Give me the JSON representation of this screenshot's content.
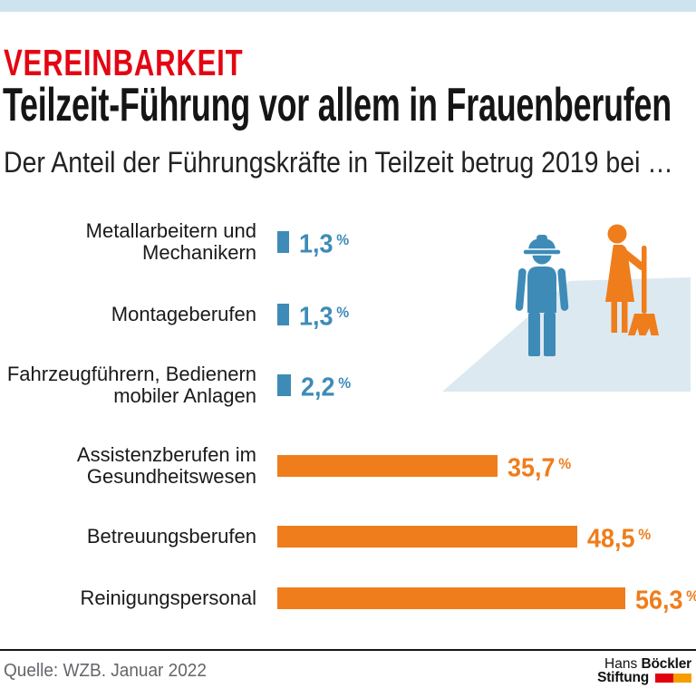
{
  "page": {
    "kicker": "VEREINBARKEIT"
  },
  "chart_data": {
    "type": "bar",
    "orientation": "horizontal",
    "title": "Teilzeit-Führung vor allem in Frauenberufen",
    "subtitle": "Der Anteil der Führungskräfte in Teilzeit betrug 2019 bei …",
    "categories": [
      "Metallarbeitern und\nMechanikern",
      "Montageberufen",
      "Fahrzeugführern, Bedienern\nmobiler Anlagen",
      "Assistenzberufen im\nGesundheitswesen",
      "Betreuungsberufen",
      "Reinigungspersonal"
    ],
    "values": [
      1.3,
      1.3,
      2.2,
      35.7,
      48.5,
      56.3
    ],
    "display_values": [
      "1,3",
      "1,3",
      "2,2",
      "35,7",
      "48,5",
      "56,3"
    ],
    "value_suffix": "%",
    "bar_colors": [
      "#3E8BB8",
      "#3E8BB8",
      "#3E8BB8",
      "#EF7D1B",
      "#EF7D1B",
      "#EF7D1B"
    ],
    "xlim": [
      0,
      60
    ],
    "grid": false,
    "legend": false
  },
  "illustration": {
    "description": "Pictogram of a blue male worker with hard hat and an orange cleaning woman with broom standing on a light floor",
    "man_color": "#3E8BB8",
    "woman_color": "#EF7D1B",
    "floor_color": "#DCE9F0"
  },
  "footer": {
    "source": "Quelle: WZB. Januar 2022",
    "logo": {
      "line1_regular": "Hans",
      "line1_bold": "Böckler",
      "line2_bold": "Stiftung"
    },
    "logo_colors": {
      "red": "#E1000F",
      "orange": "#F59E00"
    }
  },
  "colors": {
    "topbar": "#CDE4EE",
    "kicker_red": "#E30613",
    "blue": "#3E8BB8",
    "orange": "#EF7D1B",
    "source_gray": "#63666A"
  }
}
